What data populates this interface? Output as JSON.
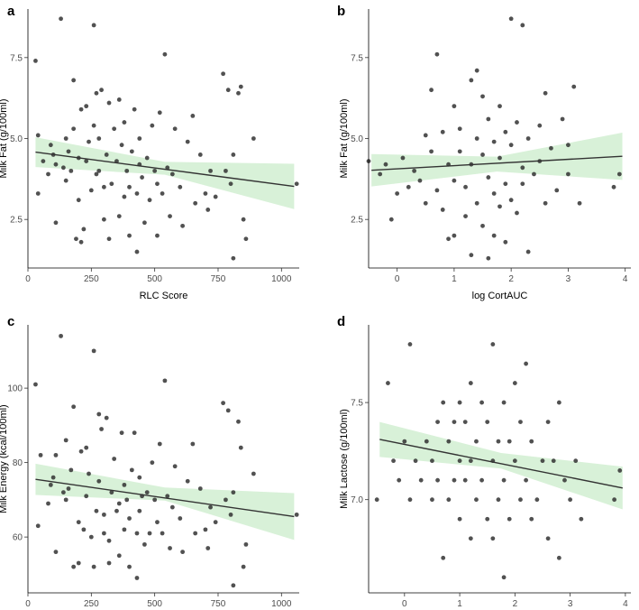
{
  "chart_data": [
    {
      "panel": "a",
      "type": "scatter",
      "xlabel": "RLC Score",
      "ylabel": "Milk Fat (g/100ml)",
      "xlim": [
        0,
        1070
      ],
      "ylim": [
        1.0,
        9.0
      ],
      "xticks": [
        0,
        250,
        500,
        750,
        1000
      ],
      "yticks": [
        2.5,
        5.0,
        7.5
      ],
      "ytick_labels": [
        "2.5",
        "5.0",
        "7.5"
      ],
      "fit": {
        "x": [
          30,
          1050
        ],
        "y": [
          4.58,
          3.52
        ]
      },
      "ci": {
        "x": [
          30,
          540,
          1050
        ],
        "lower": [
          4.12,
          3.88,
          2.82
        ],
        "upper": [
          5.04,
          4.28,
          4.22
        ]
      },
      "points": [
        [
          30,
          7.4
        ],
        [
          40,
          5.1
        ],
        [
          40,
          3.3
        ],
        [
          60,
          4.3
        ],
        [
          80,
          3.9
        ],
        [
          90,
          4.8
        ],
        [
          100,
          4.5
        ],
        [
          110,
          2.4
        ],
        [
          110,
          4.2
        ],
        [
          130,
          8.7
        ],
        [
          140,
          4.1
        ],
        [
          150,
          5.0
        ],
        [
          150,
          3.7
        ],
        [
          160,
          4.6
        ],
        [
          170,
          4.0
        ],
        [
          180,
          6.8
        ],
        [
          180,
          5.3
        ],
        [
          190,
          1.9
        ],
        [
          200,
          3.1
        ],
        [
          200,
          4.4
        ],
        [
          210,
          5.9
        ],
        [
          210,
          1.8
        ],
        [
          220,
          2.2
        ],
        [
          230,
          4.3
        ],
        [
          230,
          6.0
        ],
        [
          240,
          4.9
        ],
        [
          250,
          3.4
        ],
        [
          260,
          8.5
        ],
        [
          260,
          5.4
        ],
        [
          270,
          3.9
        ],
        [
          270,
          6.4
        ],
        [
          280,
          4.0
        ],
        [
          280,
          5.0
        ],
        [
          290,
          6.5
        ],
        [
          300,
          3.5
        ],
        [
          300,
          2.5
        ],
        [
          310,
          4.5
        ],
        [
          320,
          6.1
        ],
        [
          320,
          1.9
        ],
        [
          330,
          3.6
        ],
        [
          340,
          5.3
        ],
        [
          350,
          4.3
        ],
        [
          360,
          6.2
        ],
        [
          360,
          2.6
        ],
        [
          370,
          4.8
        ],
        [
          380,
          3.2
        ],
        [
          380,
          5.5
        ],
        [
          390,
          4.0
        ],
        [
          400,
          3.5
        ],
        [
          400,
          2.0
        ],
        [
          410,
          4.6
        ],
        [
          420,
          5.9
        ],
        [
          430,
          3.3
        ],
        [
          430,
          1.5
        ],
        [
          440,
          5.0
        ],
        [
          440,
          4.2
        ],
        [
          450,
          3.8
        ],
        [
          460,
          2.4
        ],
        [
          470,
          4.4
        ],
        [
          480,
          3.1
        ],
        [
          490,
          5.4
        ],
        [
          500,
          4.0
        ],
        [
          510,
          3.6
        ],
        [
          510,
          2.0
        ],
        [
          520,
          5.8
        ],
        [
          530,
          3.3
        ],
        [
          540,
          7.6
        ],
        [
          550,
          4.1
        ],
        [
          560,
          2.6
        ],
        [
          570,
          3.9
        ],
        [
          580,
          5.3
        ],
        [
          600,
          3.5
        ],
        [
          610,
          2.3
        ],
        [
          630,
          4.9
        ],
        [
          650,
          5.7
        ],
        [
          660,
          3.0
        ],
        [
          680,
          4.5
        ],
        [
          700,
          3.3
        ],
        [
          710,
          2.8
        ],
        [
          720,
          4.0
        ],
        [
          740,
          3.2
        ],
        [
          770,
          7.0
        ],
        [
          780,
          4.0
        ],
        [
          790,
          6.5
        ],
        [
          800,
          3.6
        ],
        [
          810,
          1.3
        ],
        [
          810,
          4.5
        ],
        [
          830,
          6.4
        ],
        [
          840,
          6.6
        ],
        [
          850,
          2.5
        ],
        [
          860,
          1.9
        ],
        [
          890,
          5.0
        ],
        [
          1060,
          3.6
        ]
      ]
    },
    {
      "panel": "b",
      "type": "scatter",
      "xlabel": "log CortAUC",
      "ylabel": "Milk Fat (g/100ml)",
      "xlim": [
        -0.5,
        4.1
      ],
      "ylim": [
        1.0,
        9.0
      ],
      "xticks": [
        0,
        1,
        2,
        3,
        4
      ],
      "yticks": [
        2.5,
        5.0,
        7.5
      ],
      "ytick_labels": [
        "2.5",
        "5.0",
        "7.5"
      ],
      "fit": {
        "x": [
          -0.45,
          3.95
        ],
        "y": [
          4.02,
          4.45
        ]
      },
      "ci": {
        "x": [
          -0.45,
          1.75,
          3.95
        ],
        "lower": [
          3.52,
          3.98,
          3.72
        ],
        "upper": [
          4.52,
          4.44,
          5.18
        ]
      },
      "points": [
        [
          -0.5,
          4.3
        ],
        [
          -0.3,
          3.9
        ],
        [
          -0.2,
          4.2
        ],
        [
          -0.1,
          2.5
        ],
        [
          0,
          3.3
        ],
        [
          0.1,
          4.4
        ],
        [
          0.2,
          3.5
        ],
        [
          0.3,
          4.0
        ],
        [
          0.4,
          3.7
        ],
        [
          0.5,
          5.1
        ],
        [
          0.5,
          3.0
        ],
        [
          0.6,
          6.5
        ],
        [
          0.6,
          4.6
        ],
        [
          0.7,
          7.6
        ],
        [
          0.7,
          3.4
        ],
        [
          0.8,
          5.2
        ],
        [
          0.8,
          2.8
        ],
        [
          0.9,
          4.2
        ],
        [
          0.9,
          1.9
        ],
        [
          1.0,
          6.0
        ],
        [
          1.0,
          3.7
        ],
        [
          1.0,
          2.0
        ],
        [
          1.1,
          5.3
        ],
        [
          1.1,
          4.6
        ],
        [
          1.2,
          3.5
        ],
        [
          1.2,
          2.6
        ],
        [
          1.3,
          6.8
        ],
        [
          1.3,
          4.2
        ],
        [
          1.3,
          1.4
        ],
        [
          1.4,
          7.1
        ],
        [
          1.4,
          5.0
        ],
        [
          1.4,
          3.0
        ],
        [
          1.5,
          6.3
        ],
        [
          1.5,
          4.5
        ],
        [
          1.5,
          2.3
        ],
        [
          1.6,
          5.6
        ],
        [
          1.6,
          3.8
        ],
        [
          1.6,
          1.3
        ],
        [
          1.7,
          4.9
        ],
        [
          1.7,
          3.3
        ],
        [
          1.7,
          2.0
        ],
        [
          1.8,
          6.0
        ],
        [
          1.8,
          4.4
        ],
        [
          1.8,
          2.9
        ],
        [
          1.9,
          5.2
        ],
        [
          1.9,
          3.6
        ],
        [
          1.9,
          1.8
        ],
        [
          2.0,
          8.7
        ],
        [
          2.0,
          4.8
        ],
        [
          2.0,
          3.1
        ],
        [
          2.1,
          5.5
        ],
        [
          2.1,
          2.7
        ],
        [
          2.2,
          8.5
        ],
        [
          2.2,
          4.1
        ],
        [
          2.2,
          3.6
        ],
        [
          2.3,
          5.0
        ],
        [
          2.3,
          1.5
        ],
        [
          2.4,
          3.9
        ],
        [
          2.5,
          5.4
        ],
        [
          2.5,
          4.3
        ],
        [
          2.6,
          3.0
        ],
        [
          2.6,
          6.4
        ],
        [
          2.7,
          4.7
        ],
        [
          2.8,
          3.4
        ],
        [
          2.9,
          5.6
        ],
        [
          3.0,
          4.8
        ],
        [
          3.0,
          3.9
        ],
        [
          3.1,
          6.6
        ],
        [
          3.2,
          3.0
        ],
        [
          3.8,
          3.5
        ],
        [
          3.9,
          3.9
        ]
      ]
    },
    {
      "panel": "c",
      "type": "scatter",
      "xlabel": "RLC Score",
      "ylabel": "Milk Energy (kcal/100ml)",
      "xlim": [
        0,
        1070
      ],
      "ylim": [
        45,
        117
      ],
      "xticks": [
        0,
        250,
        500,
        750,
        1000
      ],
      "yticks": [
        60,
        80,
        100
      ],
      "ytick_labels": [
        "60",
        "80",
        "100"
      ],
      "fit": {
        "x": [
          30,
          1050
        ],
        "y": [
          75.5,
          65.5
        ]
      },
      "ci": {
        "x": [
          30,
          540,
          1050
        ],
        "lower": [
          71.3,
          69.8,
          59.2
        ],
        "upper": [
          79.7,
          73.3,
          71.8
        ]
      },
      "points": [
        [
          30,
          101
        ],
        [
          40,
          63
        ],
        [
          50,
          82
        ],
        [
          80,
          69
        ],
        [
          90,
          74
        ],
        [
          100,
          76
        ],
        [
          110,
          56
        ],
        [
          110,
          82
        ],
        [
          130,
          114
        ],
        [
          140,
          72
        ],
        [
          150,
          70
        ],
        [
          150,
          86
        ],
        [
          160,
          73
        ],
        [
          170,
          78
        ],
        [
          180,
          95
        ],
        [
          180,
          52
        ],
        [
          200,
          53
        ],
        [
          200,
          64
        ],
        [
          210,
          83
        ],
        [
          220,
          62
        ],
        [
          230,
          84
        ],
        [
          230,
          71
        ],
        [
          240,
          77
        ],
        [
          250,
          60
        ],
        [
          260,
          110
        ],
        [
          260,
          52
        ],
        [
          270,
          67
        ],
        [
          280,
          93
        ],
        [
          280,
          75
        ],
        [
          290,
          89
        ],
        [
          300,
          61
        ],
        [
          300,
          66
        ],
        [
          310,
          92
        ],
        [
          320,
          59
        ],
        [
          320,
          53
        ],
        [
          330,
          72
        ],
        [
          340,
          81
        ],
        [
          350,
          67
        ],
        [
          360,
          69
        ],
        [
          360,
          55
        ],
        [
          370,
          88
        ],
        [
          380,
          74
        ],
        [
          380,
          62
        ],
        [
          390,
          70
        ],
        [
          400,
          65
        ],
        [
          400,
          52
        ],
        [
          410,
          78
        ],
        [
          420,
          88
        ],
        [
          430,
          61
        ],
        [
          430,
          49
        ],
        [
          440,
          76
        ],
        [
          440,
          67
        ],
        [
          450,
          71
        ],
        [
          460,
          58
        ],
        [
          470,
          72
        ],
        [
          480,
          61
        ],
        [
          490,
          80
        ],
        [
          500,
          70
        ],
        [
          510,
          64
        ],
        [
          520,
          85
        ],
        [
          530,
          61
        ],
        [
          540,
          102
        ],
        [
          550,
          71
        ],
        [
          560,
          57
        ],
        [
          570,
          68
        ],
        [
          580,
          79
        ],
        [
          600,
          65
        ],
        [
          610,
          56
        ],
        [
          630,
          75
        ],
        [
          650,
          85
        ],
        [
          660,
          61
        ],
        [
          680,
          73
        ],
        [
          700,
          62
        ],
        [
          710,
          57
        ],
        [
          720,
          68
        ],
        [
          740,
          64
        ],
        [
          770,
          96
        ],
        [
          780,
          70
        ],
        [
          790,
          94
        ],
        [
          800,
          66
        ],
        [
          810,
          47
        ],
        [
          810,
          72
        ],
        [
          830,
          91
        ],
        [
          840,
          84
        ],
        [
          850,
          52
        ],
        [
          860,
          58
        ],
        [
          890,
          77
        ],
        [
          1060,
          66
        ]
      ]
    },
    {
      "panel": "d",
      "type": "scatter",
      "xlabel": "log CortAUC",
      "ylabel": "Milk Lactose (g/100ml)",
      "xlim": [
        -0.65,
        4.1
      ],
      "ylim": [
        6.52,
        7.9
      ],
      "xticks": [
        0,
        1,
        2,
        3,
        4
      ],
      "yticks": [
        7.0,
        7.5
      ],
      "ytick_labels": [
        "7.0",
        "7.5"
      ],
      "fit": {
        "x": [
          -0.45,
          3.95
        ],
        "y": [
          7.31,
          7.06
        ]
      },
      "ci": {
        "x": [
          -0.45,
          1.75,
          3.95
        ],
        "lower": [
          7.22,
          7.16,
          6.95
        ],
        "upper": [
          7.4,
          7.24,
          7.17
        ]
      },
      "points": [
        [
          -0.5,
          7.0
        ],
        [
          -0.3,
          7.6
        ],
        [
          -0.2,
          7.2
        ],
        [
          -0.1,
          7.1
        ],
        [
          0,
          7.3
        ],
        [
          0.1,
          7.8
        ],
        [
          0.1,
          7.0
        ],
        [
          0.2,
          7.2
        ],
        [
          0.3,
          7.1
        ],
        [
          0.4,
          7.3
        ],
        [
          0.5,
          7.2
        ],
        [
          0.5,
          7.0
        ],
        [
          0.6,
          7.4
        ],
        [
          0.6,
          7.1
        ],
        [
          0.7,
          6.7
        ],
        [
          0.7,
          7.5
        ],
        [
          0.8,
          7.3
        ],
        [
          0.8,
          7.0
        ],
        [
          0.9,
          7.4
        ],
        [
          0.9,
          7.1
        ],
        [
          1.0,
          7.5
        ],
        [
          1.0,
          7.2
        ],
        [
          1.0,
          6.9
        ],
        [
          1.1,
          7.4
        ],
        [
          1.1,
          7.1
        ],
        [
          1.2,
          7.6
        ],
        [
          1.2,
          7.2
        ],
        [
          1.2,
          6.8
        ],
        [
          1.3,
          7.3
        ],
        [
          1.3,
          7.0
        ],
        [
          1.4,
          7.5
        ],
        [
          1.4,
          7.1
        ],
        [
          1.5,
          7.4
        ],
        [
          1.5,
          6.9
        ],
        [
          1.6,
          7.8
        ],
        [
          1.6,
          7.2
        ],
        [
          1.6,
          6.8
        ],
        [
          1.7,
          7.3
        ],
        [
          1.7,
          7.0
        ],
        [
          1.8,
          6.6
        ],
        [
          1.8,
          7.5
        ],
        [
          1.8,
          7.1
        ],
        [
          1.9,
          7.3
        ],
        [
          1.9,
          6.9
        ],
        [
          2.0,
          7.6
        ],
        [
          2.0,
          7.2
        ],
        [
          2.1,
          7.4
        ],
        [
          2.1,
          7.0
        ],
        [
          2.2,
          7.7
        ],
        [
          2.2,
          7.1
        ],
        [
          2.3,
          7.3
        ],
        [
          2.3,
          6.9
        ],
        [
          2.4,
          7.0
        ],
        [
          2.5,
          7.2
        ],
        [
          2.6,
          7.4
        ],
        [
          2.6,
          6.8
        ],
        [
          2.7,
          7.2
        ],
        [
          2.8,
          7.5
        ],
        [
          2.8,
          6.7
        ],
        [
          2.9,
          7.1
        ],
        [
          3.0,
          7.0
        ],
        [
          3.1,
          7.2
        ],
        [
          3.2,
          6.9
        ],
        [
          3.8,
          7.0
        ],
        [
          3.9,
          7.15
        ]
      ]
    }
  ]
}
